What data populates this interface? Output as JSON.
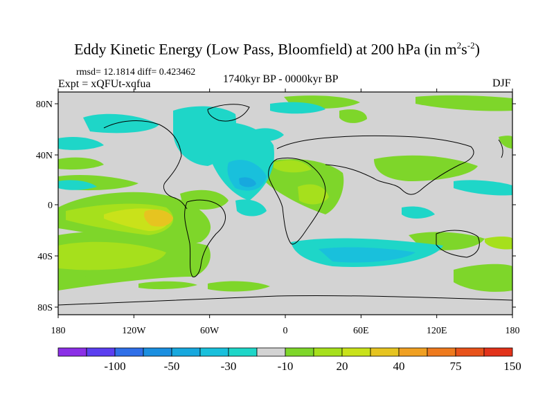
{
  "title": {
    "main": "Eddy Kinetic Energy (Low Pass, Bloomfield) at 200 hPa (in m",
    "sup1": "2",
    "mid": "s",
    "sup2": "-2",
    "end": ")"
  },
  "stats_line": "rmsd= 12.1814 diff= 0.423462",
  "experiment": "Expt = xQFUt-xqfua",
  "period": "1740kyr BP - 0000kyr BP",
  "season": "DJF",
  "lat_ticks": [
    "80N",
    "40N",
    "0",
    "40S",
    "80S"
  ],
  "lon_ticks": [
    "180",
    "120W",
    "60W",
    "0",
    "60E",
    "120E",
    "180"
  ],
  "colorbar": {
    "colors": [
      "#8b2fe6",
      "#5b3ff0",
      "#2f6fe8",
      "#1a8fe0",
      "#17a8de",
      "#19c0dc",
      "#1ed6c8",
      "#d3d3d3",
      "#7ed62a",
      "#a6e01c",
      "#c9e21a",
      "#e6c420",
      "#f0a022",
      "#ee7a1e",
      "#e8521a",
      "#e2321a"
    ],
    "labels": [
      "-100",
      "-50",
      "-30",
      "-10",
      "20",
      "40",
      "75",
      "150"
    ]
  }
}
